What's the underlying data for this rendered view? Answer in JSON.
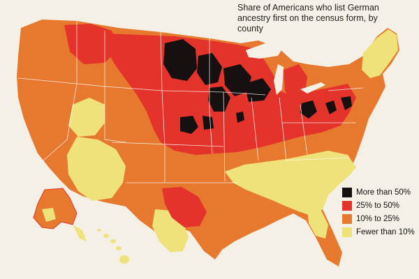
{
  "title": "Share of Americans who list German ancestry first on the census form, by county",
  "legend": {
    "items": [
      {
        "label": "More than 50%",
        "color": "#171010"
      },
      {
        "label": "25% to 50%",
        "color": "#e4332a"
      },
      {
        "label": "10% to 25%",
        "color": "#e6792e"
      },
      {
        "label": "Fewer than 10%",
        "color": "#efe27a"
      }
    ]
  },
  "colors": {
    "background": "#f5f0e6",
    "water": "#f5f0e6",
    "state_border": "#ffffff"
  }
}
